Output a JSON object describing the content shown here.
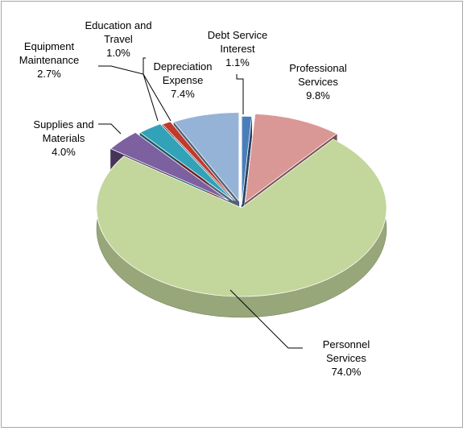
{
  "chart_data": {
    "type": "pie",
    "title": "",
    "style": "3d-exploded",
    "slices": [
      {
        "key": "debt",
        "label_lines": [
          "Debt Service",
          "Interest"
        ],
        "pct_label": "1.1%",
        "value": 1.1,
        "color": "#4a7ebb"
      },
      {
        "key": "prof",
        "label_lines": [
          "Professional",
          "Services"
        ],
        "pct_label": "9.8%",
        "value": 9.8,
        "color": "#d99795"
      },
      {
        "key": "pers",
        "label_lines": [
          "Personnel",
          "Services"
        ],
        "pct_label": "74.0%",
        "value": 74.0,
        "color": "#c3d69b"
      },
      {
        "key": "supp",
        "label_lines": [
          "Supplies and",
          "Materials"
        ],
        "pct_label": "4.0%",
        "value": 4.0,
        "color": "#7d60a0"
      },
      {
        "key": "equip",
        "label_lines": [
          "Equipment",
          "Maintenance"
        ],
        "pct_label": "2.7%",
        "value": 2.7,
        "color": "#31a2b8"
      },
      {
        "key": "edu",
        "label_lines": [
          "Education and",
          "Travel"
        ],
        "pct_label": "1.0%",
        "value": 1.0,
        "color": "#c0392b"
      },
      {
        "key": "dep",
        "label_lines": [
          "Depreciation",
          "Expense"
        ],
        "pct_label": "7.4%",
        "value": 7.4,
        "color": "#95b3d7"
      }
    ]
  }
}
